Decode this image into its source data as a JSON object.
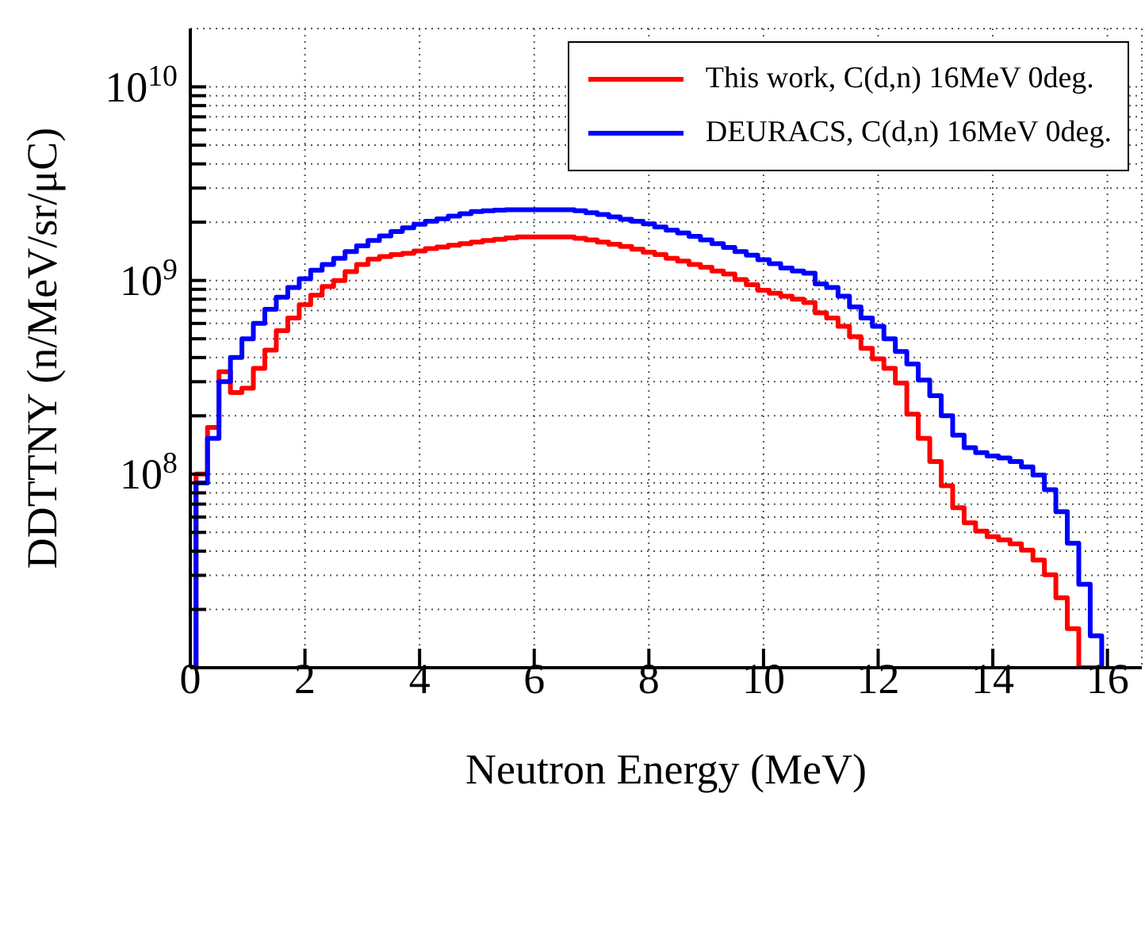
{
  "chart_data": {
    "type": "histogram",
    "xlabel": "Neutron Energy (MeV)",
    "ylabel": "DDTTNY (n/MeV/sr/μC)",
    "bins": [
      0.1,
      0.3,
      0.5,
      0.7,
      0.9,
      1.1,
      1.3,
      1.5,
      1.7,
      1.9,
      2.1,
      2.3,
      2.5,
      2.7,
      2.9,
      3.1,
      3.3,
      3.5,
      3.7,
      3.9,
      4.1,
      4.3,
      4.5,
      4.7,
      4.9,
      5.1,
      5.3,
      5.5,
      5.7,
      5.9,
      6.1,
      6.3,
      6.5,
      6.7,
      6.9,
      7.1,
      7.3,
      7.5,
      7.7,
      7.9,
      8.1,
      8.3,
      8.5,
      8.7,
      8.9,
      9.1,
      9.3,
      9.5,
      9.7,
      9.9,
      10.1,
      10.3,
      10.5,
      10.7,
      10.9,
      11.1,
      11.3,
      11.5,
      11.7,
      11.9,
      12.1,
      12.3,
      12.5,
      12.7,
      12.9,
      13.1,
      13.3,
      13.5,
      13.7,
      13.9,
      14.1,
      14.3,
      14.5,
      14.7,
      14.9,
      15.1,
      15.3,
      15.5,
      15.7,
      15.9
    ],
    "series": [
      {
        "name": "This work, C(d,n) 16MeV 0deg.",
        "color": "#ff0000",
        "values": [
          100000000.0,
          174000000.0,
          338000000.0,
          264000000.0,
          278000000.0,
          352000000.0,
          437000000.0,
          550000000.0,
          640000000.0,
          750000000.0,
          840000000.0,
          930000000.0,
          1000000000.0,
          1110000000.0,
          1210000000.0,
          1290000000.0,
          1330000000.0,
          1360000000.0,
          1380000000.0,
          1420000000.0,
          1460000000.0,
          1490000000.0,
          1520000000.0,
          1550000000.0,
          1580000000.0,
          1610000000.0,
          1630000000.0,
          1660000000.0,
          1680000000.0,
          1680000000.0,
          1680000000.0,
          1680000000.0,
          1680000000.0,
          1650000000.0,
          1620000000.0,
          1580000000.0,
          1540000000.0,
          1500000000.0,
          1450000000.0,
          1400000000.0,
          1360000000.0,
          1300000000.0,
          1260000000.0,
          1210000000.0,
          1170000000.0,
          1120000000.0,
          1080000000.0,
          1010000000.0,
          950000000.0,
          890000000.0,
          860000000.0,
          830000000.0,
          800000000.0,
          770000000.0,
          680000000.0,
          640000000.0,
          580000000.0,
          513000000.0,
          446000000.0,
          394000000.0,
          352000000.0,
          295000000.0,
          204000000.0,
          153000000.0,
          116000000.0,
          87000000.0,
          67000000.0,
          56000000.0,
          50700000.0,
          47500000.0,
          45800000.0,
          43600000.0,
          40500000.0,
          36000000.0,
          30200000.0,
          23000000.0,
          15900000.0,
          null,
          null
        ]
      },
      {
        "name": "DEURACS, C(d,n) 16MeV 0deg.",
        "color": "#0000ff",
        "values": [
          90000000.0,
          153000000.0,
          300000000.0,
          400000000.0,
          500000000.0,
          600000000.0,
          710000000.0,
          820000000.0,
          920000000.0,
          1020000000.0,
          1130000000.0,
          1210000000.0,
          1300000000.0,
          1410000000.0,
          1510000000.0,
          1610000000.0,
          1700000000.0,
          1790000000.0,
          1870000000.0,
          1950000000.0,
          2020000000.0,
          2080000000.0,
          2150000000.0,
          2210000000.0,
          2270000000.0,
          2290000000.0,
          2310000000.0,
          2320000000.0,
          2320000000.0,
          2320000000.0,
          2320000000.0,
          2320000000.0,
          2320000000.0,
          2290000000.0,
          2240000000.0,
          2190000000.0,
          2130000000.0,
          2070000000.0,
          2020000000.0,
          1960000000.0,
          1890000000.0,
          1820000000.0,
          1760000000.0,
          1690000000.0,
          1620000000.0,
          1550000000.0,
          1480000000.0,
          1410000000.0,
          1350000000.0,
          1280000000.0,
          1220000000.0,
          1160000000.0,
          1120000000.0,
          1090000000.0,
          960000000.0,
          920000000.0,
          830000000.0,
          730000000.0,
          640000000.0,
          580000000.0,
          500000000.0,
          430000000.0,
          370000000.0,
          306000000.0,
          254000000.0,
          200000000.0,
          159000000.0,
          137000000.0,
          129000000.0,
          124000000.0,
          121000000.0,
          116000000.0,
          109000000.0,
          99000000.0,
          83000000.0,
          64000000.0,
          44000000.0,
          27000000.0,
          14600000.0
        ]
      }
    ],
    "xlim": [
      0,
      16.6
    ],
    "xticks": [
      0,
      2,
      4,
      6,
      8,
      10,
      12,
      14,
      16
    ],
    "ylim": [
      10000000.0,
      20000000000.0
    ],
    "yticks": [
      {
        "value": 20000000.0,
        "label": null
      },
      {
        "value": 30000000.0,
        "label": null
      },
      {
        "value": 40000000.0,
        "label": null
      },
      {
        "value": 50000000.0,
        "label": null
      },
      {
        "value": 60000000.0,
        "label": null
      },
      {
        "value": 70000000.0,
        "label": null
      },
      {
        "value": 80000000.0,
        "label": null
      },
      {
        "value": 90000000.0,
        "label": null
      },
      {
        "value": 100000000.0,
        "label": "10$^{8}$"
      },
      {
        "value": 200000000.0,
        "label": null
      },
      {
        "value": 300000000.0,
        "label": null
      },
      {
        "value": 400000000.0,
        "label": null
      },
      {
        "value": 500000000.0,
        "label": null
      },
      {
        "value": 600000000.0,
        "label": null
      },
      {
        "value": 700000000.0,
        "label": null
      },
      {
        "value": 800000000.0,
        "label": null
      },
      {
        "value": 900000000.0,
        "label": null
      },
      {
        "value": 1000000000.0,
        "label": "10$^{9}$"
      },
      {
        "value": 2000000000.0,
        "label": null
      },
      {
        "value": 3000000000.0,
        "label": null
      },
      {
        "value": 4000000000.0,
        "label": null
      },
      {
        "value": 5000000000.0,
        "label": null
      },
      {
        "value": 6000000000.0,
        "label": null
      },
      {
        "value": 7000000000.0,
        "label": null
      },
      {
        "value": 8000000000.0,
        "label": null
      },
      {
        "value": 9000000000.0,
        "label": null
      },
      {
        "value": 10000000000.0,
        "label": "10$^{10}$"
      }
    ],
    "log": "y",
    "grid": true,
    "legend": "top right"
  }
}
